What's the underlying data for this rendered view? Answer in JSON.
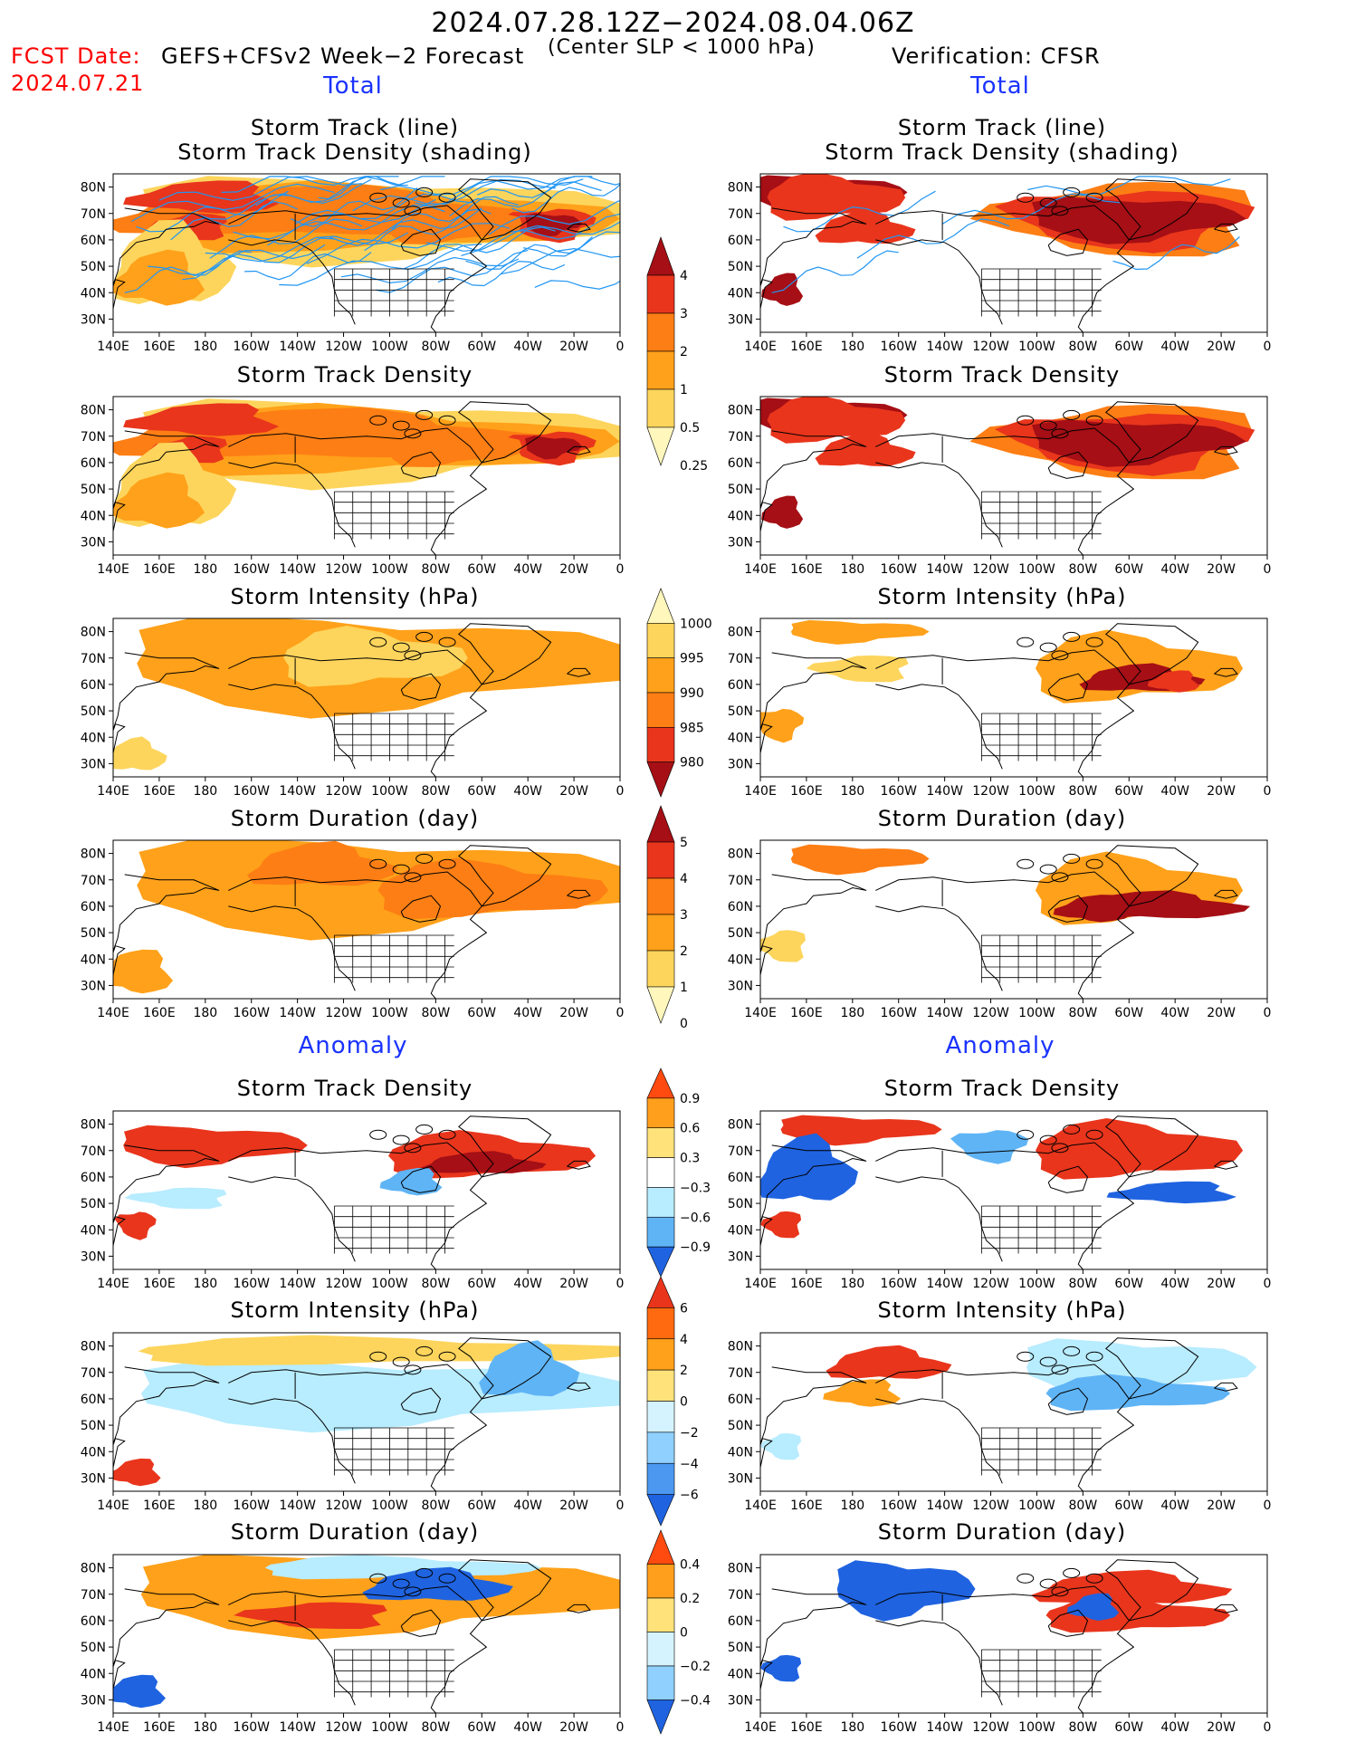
{
  "header": {
    "period": "2024.07.28.12Z−2024.08.04.06Z",
    "fcst_label": "FCST Date:",
    "fcst_date": "2024.07.21",
    "forecast_name": "GEFS+CFSv2 Week−2 Forecast",
    "criterion": "(Center SLP < 1000 hPa)",
    "verification": "Verification: CFSR"
  },
  "section_labels": {
    "total": "Total",
    "anomaly": "Anomaly"
  },
  "panel_titles": {
    "track_line": "Storm Track (line)",
    "track_density_shading": "Storm Track Density (shading)",
    "track_density": "Storm Track Density",
    "intensity": "Storm Intensity (hPa)",
    "duration": "Storm Duration (day)"
  },
  "axes": {
    "lat_labels": [
      "80N",
      "70N",
      "60N",
      "50N",
      "40N",
      "30N"
    ],
    "lon_labels": [
      "140E",
      "160E",
      "180",
      "160W",
      "140W",
      "120W",
      "100W",
      "80W",
      "60W",
      "40W",
      "20W",
      "0"
    ]
  },
  "colorbars": [
    {
      "labels": [
        "4",
        "3",
        "2",
        "1",
        "0.5",
        "0.25"
      ],
      "colors": [
        "#a50f15",
        "#e8351c",
        "#fd7e14",
        "#ffa11a",
        "#fdd55c",
        "#fff7bc"
      ]
    },
    {
      "labels": [
        "1000",
        "995",
        "990",
        "985",
        "980"
      ],
      "colors": [
        "#fff7bc",
        "#fdd55c",
        "#ffa11a",
        "#fd7e14",
        "#e8351c",
        "#a50f15"
      ]
    },
    {
      "labels": [
        "5",
        "4",
        "3",
        "2",
        "1",
        "0"
      ],
      "colors": [
        "#a50f15",
        "#e8351c",
        "#fd7e14",
        "#ffa11a",
        "#fdd55c",
        "#fff7bc"
      ]
    },
    {
      "labels": [
        "0.9",
        "0.6",
        "0.3",
        "−0.3",
        "−0.6",
        "−0.9"
      ],
      "colors": [
        "#ff4a10",
        "#ff9f1c",
        "#ffe27a",
        "#ffffff",
        "#b8ecff",
        "#5fb4f5",
        "#1f63e0"
      ]
    },
    {
      "labels": [
        "6",
        "4",
        "2",
        "0",
        "−2",
        "−4",
        "−6"
      ],
      "colors": [
        "#e8351c",
        "#ff6a10",
        "#ffa11a",
        "#ffe27a",
        "#d5f3ff",
        "#8fd0ff",
        "#4c98f0",
        "#1f63e0"
      ]
    },
    {
      "labels": [
        "0.4",
        "0.2",
        "0",
        "−0.2",
        "−0.4"
      ],
      "colors": [
        "#ff4a10",
        "#ff9f1c",
        "#ffe27a",
        "#d5f3ff",
        "#8fd0ff",
        "#1f63e0"
      ]
    }
  ],
  "palette": {
    "dark_red": "#a50f15",
    "red": "#e8351c",
    "orange_dark": "#fd7e14",
    "orange": "#ffa11a",
    "yellow": "#fdd55c",
    "pale_yellow": "#fff7bc",
    "light_blue": "#b8ecff",
    "blue": "#5fb4f5",
    "dark_blue": "#1f63e0",
    "track_line": "#2196f3",
    "forecast_red": "#ff0000",
    "section_blue": "#1a33ff"
  }
}
